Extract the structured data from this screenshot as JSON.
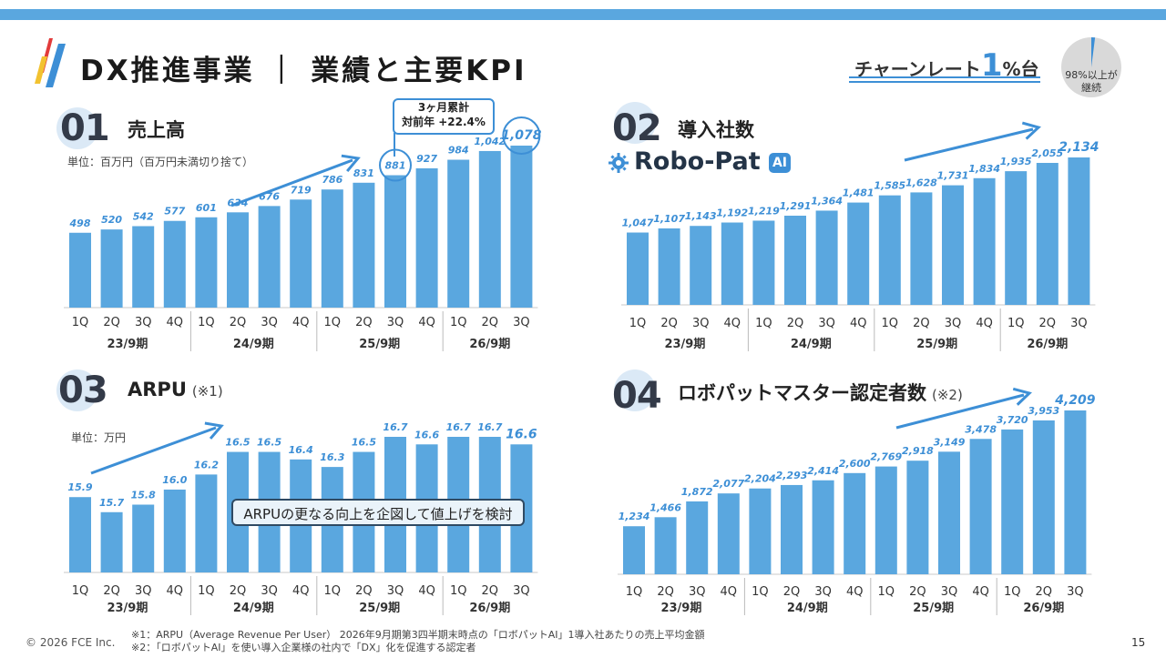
{
  "header": {
    "title": "DX推進事業 ｜ 業績と主要KPI",
    "churn_prefix": "チャーンレート",
    "churn_value": "1",
    "churn_suffix": "%台",
    "pie_text_line1": "98%以上が",
    "pie_text_line2": "継続",
    "pie_continue_percent": 98
  },
  "sections": {
    "s1": {
      "num": "01",
      "title": "売上高",
      "unit": "単位：百万円（百万円未満切り捨て）"
    },
    "s2": {
      "num": "02",
      "title": "導入社数",
      "brand": "Robo-Pat",
      "brand_ai": "AI"
    },
    "s3": {
      "num": "03",
      "title": "ARPU",
      "note": "(※1)",
      "unit": "単位：万円"
    },
    "s4": {
      "num": "04",
      "title": "ロボパットマスター認定者数",
      "note": "(※2)"
    }
  },
  "callout": {
    "line1": "3ヶ月累計",
    "line2": "対前年 +22.4%"
  },
  "arpu_message": "ARPUの更なる向上を企図して値上げを検討",
  "footer": {
    "copyright": "© 2026 FCE Inc.",
    "note1": "※1：ARPU（Average Revenue Per User） 2026年9月期第3四半期末時点の「ロボパットAI」1導入社あたりの売上平均金額",
    "note2": "※2：「ロボパットAI」を使い導入企業様の社内で「DX」化を促進する認定者",
    "page": "15"
  },
  "colors": {
    "bar": "#5aa7df",
    "accent": "#3d8fd6",
    "text": "#333333"
  },
  "chart_data": [
    {
      "type": "bar",
      "title": "売上高",
      "categories": [
        "1Q",
        "2Q",
        "3Q",
        "4Q",
        "1Q",
        "2Q",
        "3Q",
        "4Q",
        "1Q",
        "2Q",
        "3Q",
        "4Q",
        "1Q",
        "2Q",
        "3Q"
      ],
      "groups": [
        "23/9期",
        "24/9期",
        "25/9期",
        "26/9期"
      ],
      "values": [
        498,
        520,
        542,
        577,
        601,
        634,
        676,
        719,
        786,
        831,
        881,
        927,
        984,
        1042,
        1078
      ],
      "labels": [
        "498",
        "520",
        "542",
        "577",
        "601",
        "634",
        "676",
        "719",
        "786",
        "831",
        "881",
        "927",
        "984",
        "1,042",
        "1,078"
      ],
      "circled": [
        10,
        14
      ],
      "ylim": [
        0,
        1078
      ]
    },
    {
      "type": "bar",
      "title": "導入社数",
      "categories": [
        "1Q",
        "2Q",
        "3Q",
        "4Q",
        "1Q",
        "2Q",
        "3Q",
        "4Q",
        "1Q",
        "2Q",
        "3Q",
        "4Q",
        "1Q",
        "2Q",
        "3Q"
      ],
      "groups": [
        "23/9期",
        "24/9期",
        "25/9期",
        "26/9期"
      ],
      "values": [
        1047,
        1107,
        1143,
        1192,
        1219,
        1291,
        1364,
        1481,
        1585,
        1628,
        1731,
        1834,
        1935,
        2055,
        2134
      ],
      "labels": [
        "1,047",
        "1,107",
        "1,143",
        "1,192",
        "1,219",
        "1,291",
        "1,364",
        "1,481",
        "1,585",
        "1,628",
        "1,731",
        "1,834",
        "1,935",
        "2,055",
        "2,134"
      ],
      "ylim": [
        0,
        2134
      ]
    },
    {
      "type": "bar",
      "title": "ARPU",
      "categories": [
        "1Q",
        "2Q",
        "3Q",
        "4Q",
        "1Q",
        "2Q",
        "3Q",
        "4Q",
        "1Q",
        "2Q",
        "3Q",
        "4Q",
        "1Q",
        "2Q",
        "3Q"
      ],
      "groups": [
        "23/9期",
        "24/9期",
        "25/9期",
        "26/9期"
      ],
      "values": [
        15.9,
        15.7,
        15.8,
        16.0,
        16.2,
        16.5,
        16.5,
        16.4,
        16.3,
        16.5,
        16.7,
        16.6,
        16.7,
        16.7,
        16.6
      ],
      "labels": [
        "15.9",
        "15.7",
        "15.8",
        "16.0",
        "16.2",
        "16.5",
        "16.5",
        "16.4",
        "16.3",
        "16.5",
        "16.7",
        "16.6",
        "16.7",
        "16.7",
        "16.6"
      ],
      "ylim": [
        14.9,
        16.7
      ]
    },
    {
      "type": "bar",
      "title": "ロボパットマスター認定者数",
      "categories": [
        "1Q",
        "2Q",
        "3Q",
        "4Q",
        "1Q",
        "2Q",
        "3Q",
        "4Q",
        "1Q",
        "2Q",
        "3Q",
        "4Q",
        "1Q",
        "2Q",
        "3Q"
      ],
      "groups": [
        "23/9期",
        "24/9期",
        "25/9期",
        "26/9期"
      ],
      "values": [
        1234,
        1466,
        1872,
        2077,
        2204,
        2293,
        2414,
        2600,
        2769,
        2918,
        3149,
        3478,
        3720,
        3953,
        4209
      ],
      "labels": [
        "1,234",
        "1,466",
        "1,872",
        "2,077",
        "2,204",
        "2,293",
        "2,414",
        "2,600",
        "2,769",
        "2,918",
        "3,149",
        "3,478",
        "3,720",
        "3,953",
        "4,209"
      ],
      "ylim": [
        0,
        4209
      ]
    }
  ]
}
